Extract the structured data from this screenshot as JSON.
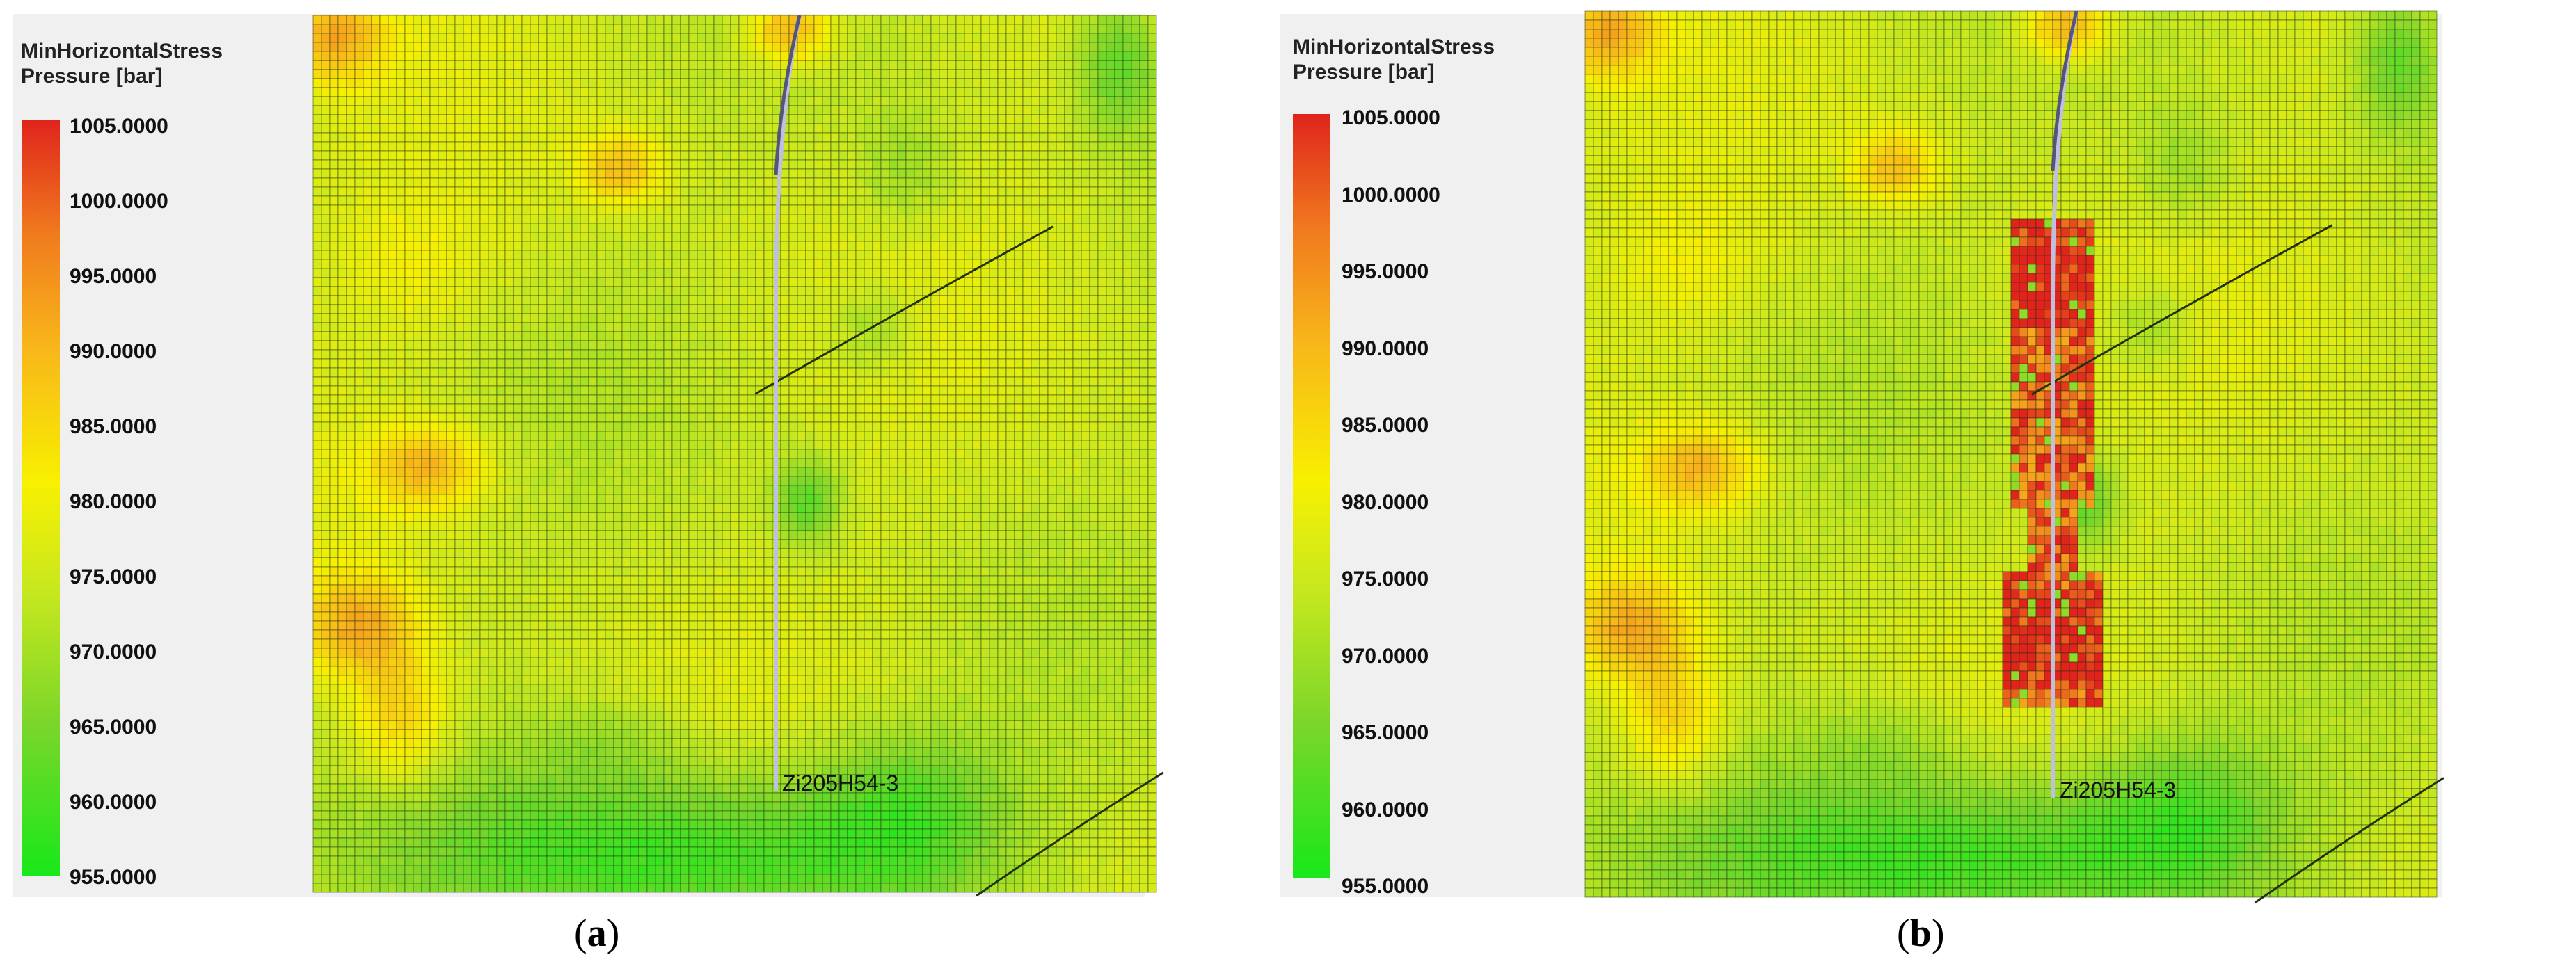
{
  "figure": {
    "legend": {
      "title_line1": "MinHorizontalStress",
      "title_line2": "Pressure [bar]",
      "ticks": [
        "1005.0000",
        "1000.0000",
        "995.0000",
        "990.0000",
        "985.0000",
        "980.0000",
        "975.0000",
        "970.0000",
        "965.0000",
        "960.0000",
        "955.0000"
      ],
      "color_max": "#e0241b",
      "color_mid": "#f8f000",
      "color_min": "#18e81a"
    },
    "well_name": "Zi205H54-3",
    "panels": [
      {
        "id": "a",
        "label_open": "(",
        "label_letter": "a",
        "label_close": ")"
      },
      {
        "id": "b",
        "label_open": "(",
        "label_letter": "b",
        "label_close": ")"
      }
    ]
  }
}
